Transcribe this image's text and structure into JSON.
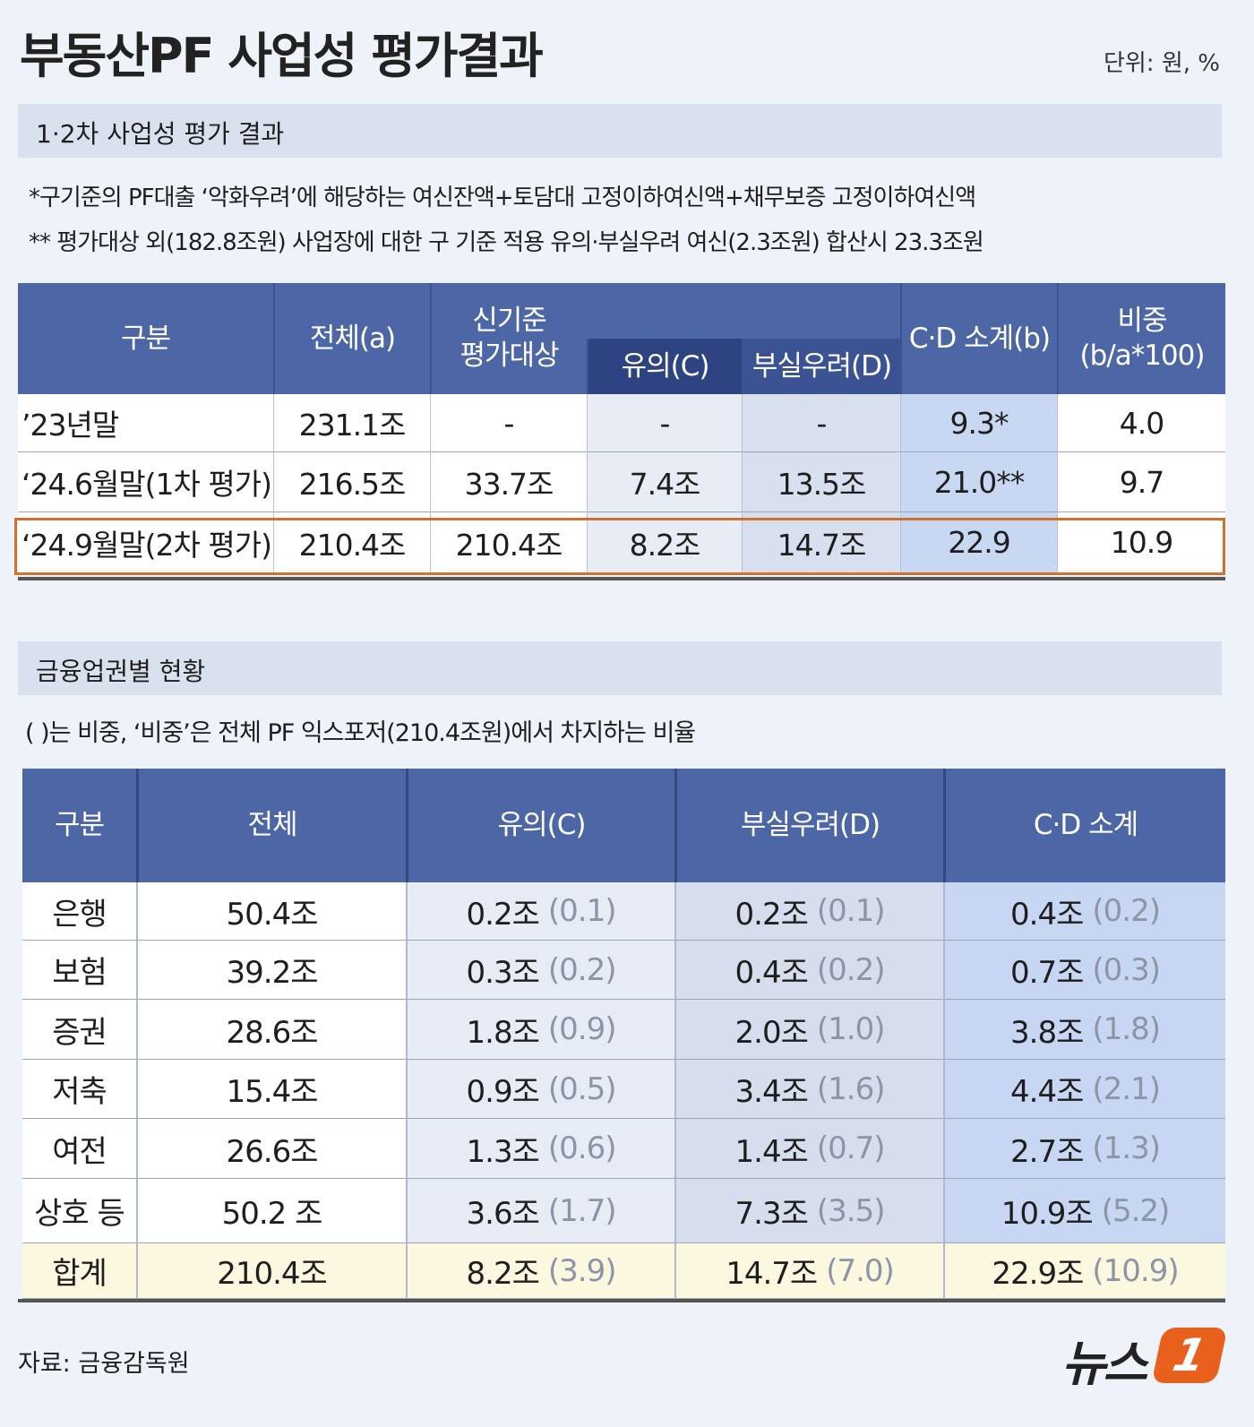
{
  "header": {
    "title": "부동산PF 사업성 평가결과",
    "unit": "단위: 원, %"
  },
  "section1": {
    "title": "1·2차 사업성 평가 결과",
    "notes": [
      "*구기준의 PF대출 ‘악화우려’에 해당하는 여신잔액+토담대 고정이하여신액+채무보증 고정이하여신액",
      "** 평가대상 외(182.8조원) 사업장에 대한 구 기준 적용 유의·부실우려 여신(2.3조원) 합산시 23.3조원"
    ],
    "table": {
      "headers": [
        [
          "구분"
        ],
        [
          "전체(a)"
        ],
        [
          "신기준",
          "평가대상"
        ],
        [
          "유의(C)"
        ],
        [
          "부실우려(D)"
        ],
        [
          "C·D 소계(b)"
        ],
        [
          "비중",
          "(b/a*100)"
        ]
      ],
      "rows": [
        [
          "’23년말",
          "231.1조",
          "-",
          "-",
          "-",
          "9.3*",
          "4.0"
        ],
        [
          "‘24.6월말(1차 평가)",
          "216.5조",
          "33.7조",
          "7.4조",
          "13.5조",
          "21.0**",
          "9.7"
        ],
        [
          "‘24.9월말(2차 평가)",
          "210.4조",
          "210.4조",
          "8.2조",
          "14.7조",
          "22.9",
          "10.9"
        ]
      ]
    }
  },
  "section2": {
    "title": "금융업권별 현황",
    "note": "(   )는 비중, ‘비중’은 전체 PF 익스포저(210.4조원)에서 차지하는 비율",
    "table": {
      "headers": [
        "구분",
        "전체",
        "유의(C)",
        "부실우려(D)",
        "C·D 소계"
      ],
      "rows": [
        [
          "은행",
          "50.4조",
          [
            "0.2조",
            "(0.1)"
          ],
          [
            "0.2조",
            "(0.1)"
          ],
          [
            "0.4조",
            "(0.2)"
          ]
        ],
        [
          "보험",
          "39.2조",
          [
            "0.3조",
            "(0.2)"
          ],
          [
            "0.4조",
            "(0.2)"
          ],
          [
            "0.7조",
            "(0.3)"
          ]
        ],
        [
          "증권",
          "28.6조",
          [
            "1.8조",
            "(0.9)"
          ],
          [
            "2.0조",
            "(1.0)"
          ],
          [
            "3.8조",
            "(1.8)"
          ]
        ],
        [
          "저축",
          "15.4조",
          [
            "0.9조",
            "(0.5)"
          ],
          [
            "3.4조",
            "(1.6)"
          ],
          [
            "4.4조",
            "(2.1)"
          ]
        ],
        [
          "여전",
          "26.6조",
          [
            "1.3조",
            "(0.6)"
          ],
          [
            "1.4조",
            "(0.7)"
          ],
          [
            "2.7조",
            "(1.3)"
          ]
        ],
        [
          "상호 등",
          "50.2 조",
          [
            "3.6조",
            "(1.7)"
          ],
          [
            "7.3조",
            "(3.5)"
          ],
          [
            "10.9조",
            "(5.2)"
          ]
        ],
        [
          "합계",
          "210.4조",
          [
            "8.2조",
            "(3.9)"
          ],
          [
            "14.7조",
            "(7.0)"
          ],
          [
            "22.9조",
            "(10.9)"
          ]
        ]
      ]
    }
  },
  "footer": {
    "source": "자료: 금융감독원",
    "logo": [
      "뉴스",
      "1"
    ]
  }
}
